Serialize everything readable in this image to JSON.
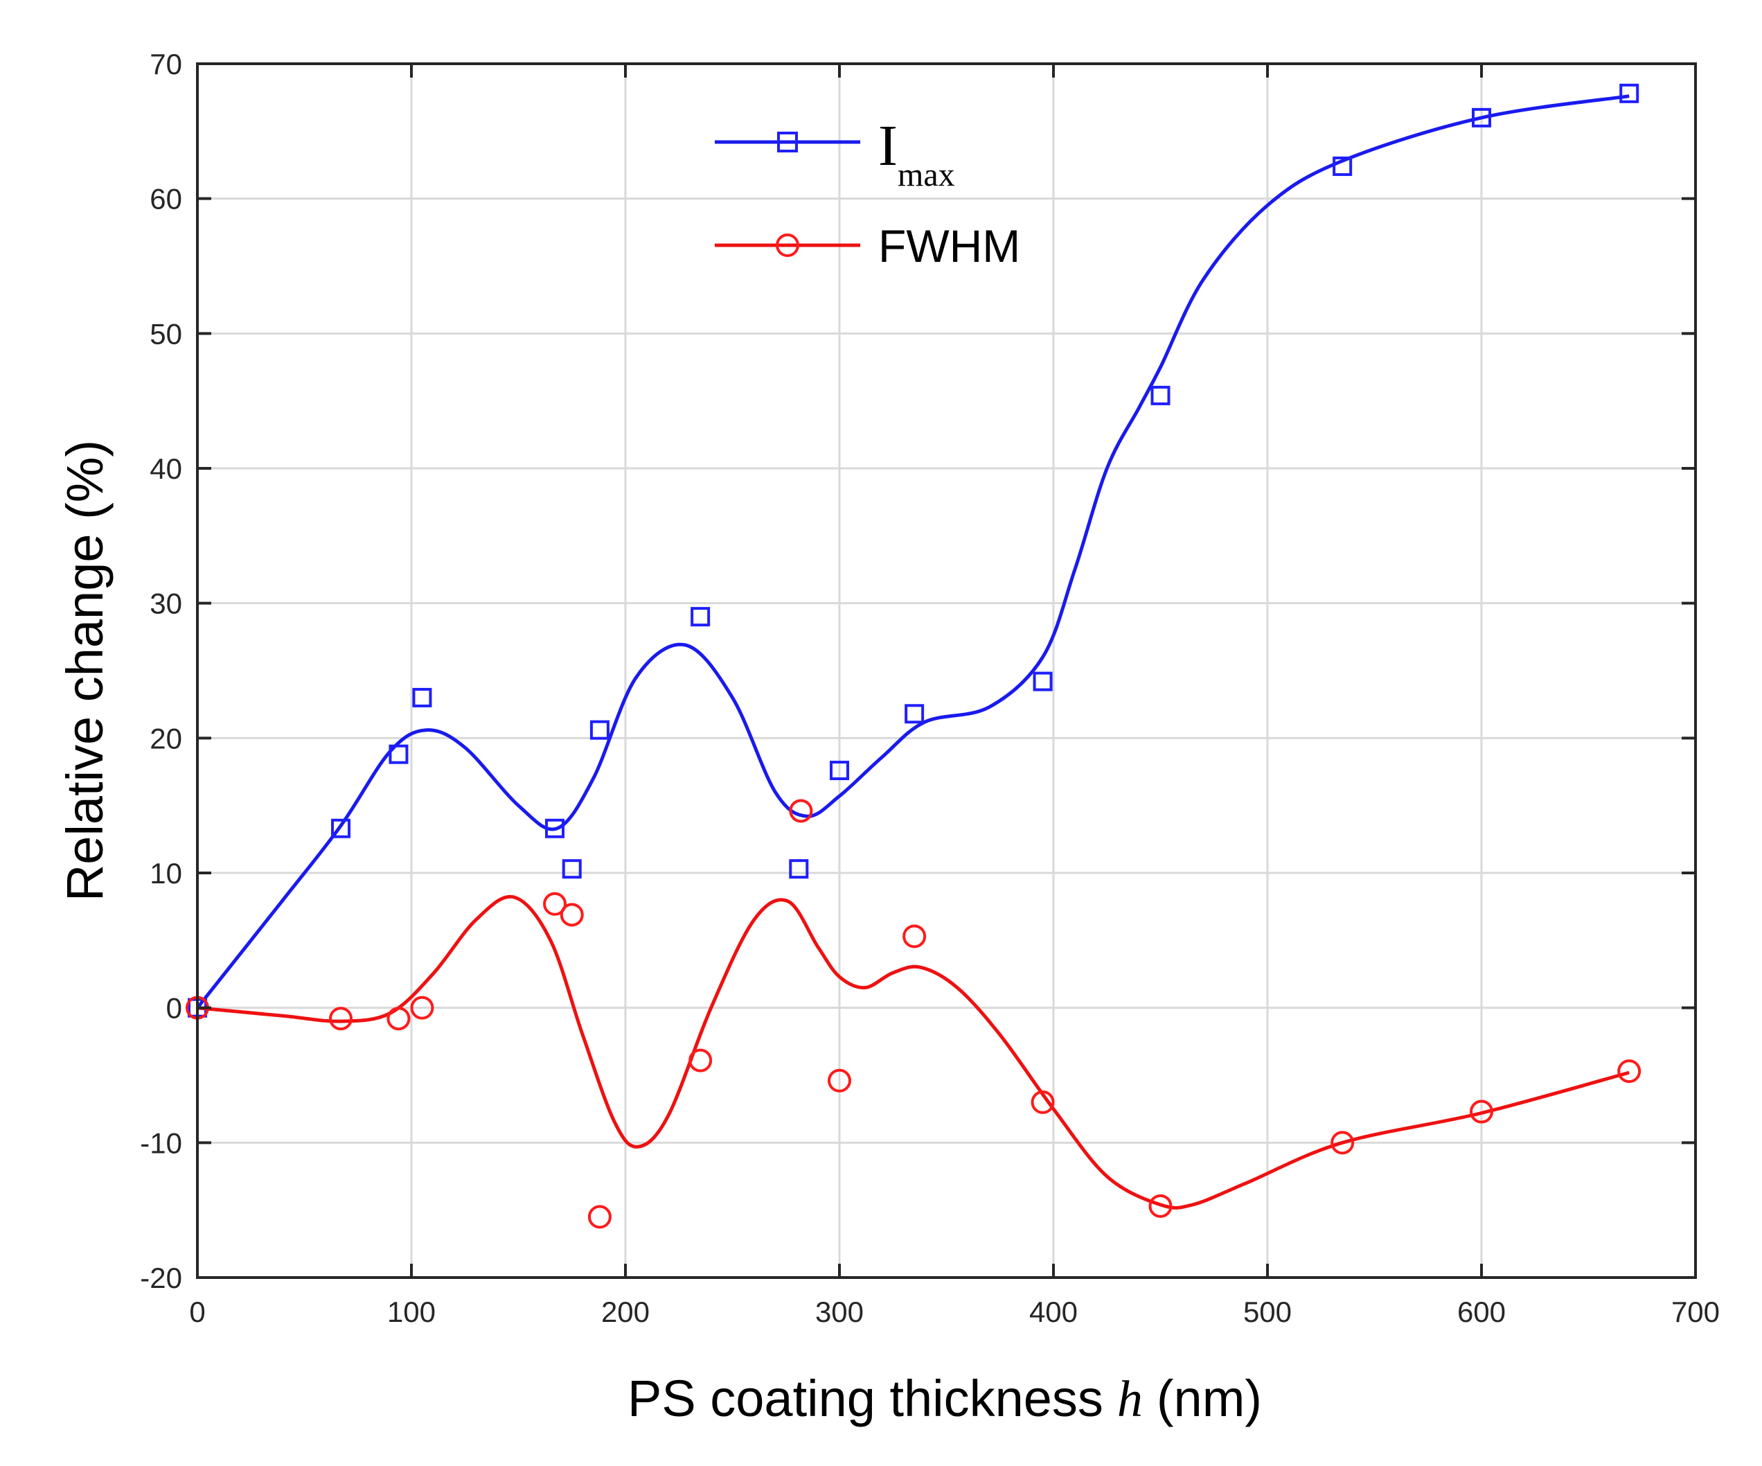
{
  "chart_data": {
    "type": "line",
    "xlabel_prefix": "PS coating thickness",
    "xlabel_var": "h",
    "xlabel_suffix": "(nm)",
    "ylabel": "Relative change  (%)",
    "xlim": [
      0,
      700
    ],
    "ylim": [
      -20,
      70
    ],
    "xticks": [
      0,
      100,
      200,
      300,
      400,
      500,
      600,
      700
    ],
    "yticks": [
      -20,
      -10,
      0,
      10,
      20,
      30,
      40,
      50,
      60,
      70
    ],
    "grid": true,
    "legend_position": "top-center",
    "series": [
      {
        "name": "I",
        "name_sub": "max",
        "color": "#1f1fff",
        "line_color": "#1a1aee",
        "marker": "square",
        "points": {
          "x": [
            0,
            67,
            94,
            105,
            167,
            175,
            188,
            235,
            281,
            300,
            335,
            395,
            450,
            535,
            600,
            669
          ],
          "y": [
            0,
            13.3,
            18.8,
            23.0,
            13.3,
            10.3,
            20.6,
            29.0,
            10.3,
            17.6,
            21.8,
            24.2,
            45.4,
            62.4,
            66.0,
            67.8
          ]
        },
        "fit": {
          "x": [
            0,
            40,
            67,
            90,
            107,
            125,
            150,
            168,
            185,
            205,
            228,
            250,
            270,
            285,
            300,
            320,
            340,
            370,
            395,
            410,
            425,
            440,
            450,
            470,
            500,
            535,
            600,
            669
          ],
          "y": [
            0,
            8,
            13.5,
            19,
            20.6,
            19.3,
            15,
            13.3,
            17,
            24.5,
            26.9,
            23,
            16,
            14.2,
            15.7,
            18.6,
            21.2,
            22.3,
            26,
            32.5,
            40,
            44.5,
            47.5,
            54,
            59.5,
            62.8,
            66,
            67.6
          ]
        }
      },
      {
        "name": "FWHM",
        "color": "#ff1a1a",
        "line_color": "#ee1111",
        "marker": "circle",
        "points": {
          "x": [
            0,
            67,
            94,
            105,
            167,
            175,
            188,
            235,
            282,
            300,
            335,
            395,
            450,
            535,
            600,
            669
          ],
          "y": [
            0,
            -0.8,
            -0.8,
            0,
            7.7,
            6.9,
            -15.5,
            -3.9,
            14.6,
            -5.4,
            5.3,
            -7.0,
            -14.7,
            -10.0,
            -7.7,
            -4.7
          ]
        },
        "fit": {
          "x": [
            0,
            40,
            67,
            90,
            110,
            130,
            148,
            165,
            180,
            195,
            206,
            220,
            240,
            260,
            276,
            290,
            300,
            312,
            325,
            338,
            355,
            375,
            400,
            425,
            450,
            465,
            490,
            535,
            600,
            669
          ],
          "y": [
            0,
            -0.6,
            -1.0,
            -0.4,
            2.5,
            6.5,
            8.2,
            5.0,
            -2.0,
            -8.5,
            -10.3,
            -8.0,
            0,
            6.5,
            7.9,
            4.5,
            2.3,
            1.5,
            2.6,
            3.0,
            1.5,
            -2.0,
            -7.5,
            -12.5,
            -14.6,
            -14.6,
            -13.0,
            -10.0,
            -7.8,
            -4.8
          ]
        }
      }
    ]
  }
}
